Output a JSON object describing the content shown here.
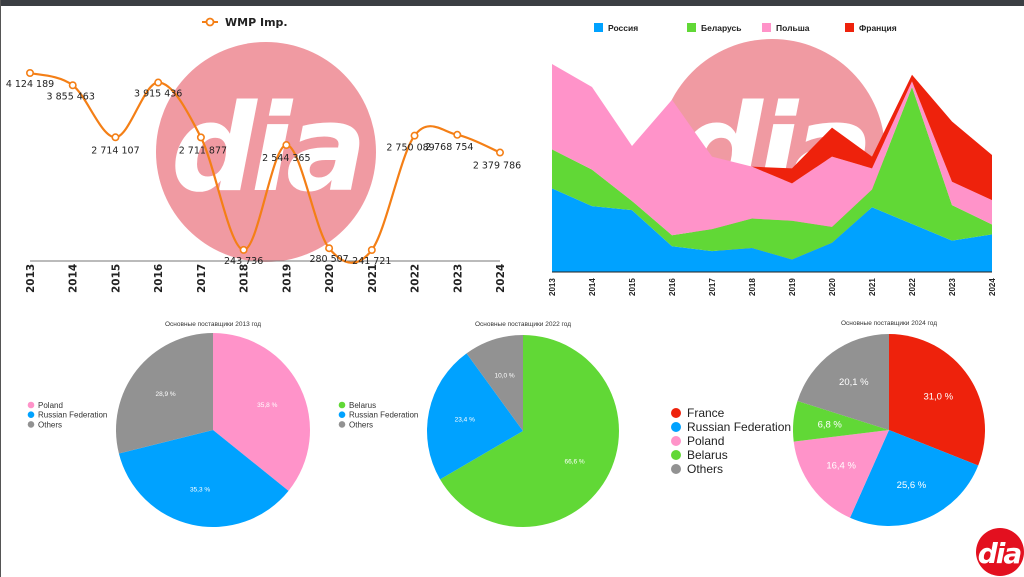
{
  "colors": {
    "orange": "#f47f16",
    "russia": "#00a2ff",
    "belarus": "#61d836",
    "poland": "#ff93c9",
    "france": "#ee220c",
    "others": "#929292",
    "watermark": "#f09aa2",
    "logo": "#e3101f"
  },
  "logo_text": "dia",
  "chart_data": [
    {
      "type": "line",
      "legend": "WMP Imp.",
      "x": [
        "2013",
        "2014",
        "2015",
        "2016",
        "2017",
        "2018",
        "2019",
        "2020",
        "2021",
        "2022",
        "2023",
        "2024"
      ],
      "values": [
        4124189,
        3855463,
        2714107,
        3915436,
        2711877,
        243736,
        2544365,
        280507,
        241721,
        2750089,
        2768754,
        2379786
      ],
      "labels": [
        "4 124 189",
        "3 855 463",
        "2 714 107",
        "3 915 436",
        "2 711 877",
        "243 736",
        "2 544 365",
        "280 507",
        "241 721",
        "2 750 089",
        "2 768 754",
        "2 379 786"
      ]
    },
    {
      "type": "area",
      "stacked": true,
      "x": [
        "2013",
        "2014",
        "2015",
        "2016",
        "2017",
        "2018",
        "2019",
        "2020",
        "2021",
        "2022",
        "2023",
        "2024"
      ],
      "series": [
        {
          "name": "Россия",
          "color": "#00a2ff",
          "values": [
            40,
            31.5,
            29.6,
            12.3,
            10,
            11.5,
            6,
            14,
            31,
            23,
            15,
            18
          ]
        },
        {
          "name": "Беларусь",
          "color": "#61d836",
          "values": [
            18.7,
            17.5,
            4.4,
            5.3,
            10.5,
            14.1,
            18.5,
            7.6,
            8.5,
            65.5,
            17,
            4.7
          ]
        },
        {
          "name": "Польша",
          "color": "#ff93c9",
          "values": [
            40.8,
            39.5,
            26.3,
            64.8,
            34.7,
            24.8,
            17.9,
            33.6,
            10.1,
            2.7,
            11.2,
            11.7
          ]
        },
        {
          "name": "Франция",
          "color": "#ee220c",
          "values": [
            0,
            0,
            0,
            0,
            0,
            0,
            7.2,
            13.9,
            5.6,
            3.2,
            28.8,
            21.6
          ]
        }
      ],
      "ylim": [
        0,
        100
      ]
    },
    {
      "type": "pie",
      "title": "Основные поставщики 2013 год",
      "slices": [
        {
          "name": "Poland",
          "value": 35.8,
          "label": "35,8 %",
          "color": "#ff93c9"
        },
        {
          "name": "Russian Federation",
          "value": 35.3,
          "label": "35,3 %",
          "color": "#00a2ff"
        },
        {
          "name": "Others",
          "value": 28.9,
          "label": "28,9 %",
          "color": "#929292"
        }
      ]
    },
    {
      "type": "pie",
      "title": "Основные поставщики 2022 год",
      "slices": [
        {
          "name": "Belarus",
          "value": 66.6,
          "label": "66,6 %",
          "color": "#61d836"
        },
        {
          "name": "Russian Federation",
          "value": 23.4,
          "label": "23,4 %",
          "color": "#00a2ff"
        },
        {
          "name": "Others",
          "value": 10.0,
          "label": "10,0 %",
          "color": "#929292"
        }
      ]
    },
    {
      "type": "pie",
      "title": "Основные поставщики 2024 год",
      "slices": [
        {
          "name": "France",
          "value": 31.0,
          "label": "31,0 %",
          "color": "#ee220c"
        },
        {
          "name": "Russian Federation",
          "value": 25.6,
          "label": "25,6 %",
          "color": "#00a2ff"
        },
        {
          "name": "Poland",
          "value": 16.4,
          "label": "16,4 %",
          "color": "#ff93c9"
        },
        {
          "name": "Belarus",
          "value": 6.8,
          "label": "6,8 %",
          "color": "#61d836"
        },
        {
          "name": "Others",
          "value": 20.1,
          "label": "20,1 %",
          "color": "#929292"
        }
      ]
    }
  ]
}
